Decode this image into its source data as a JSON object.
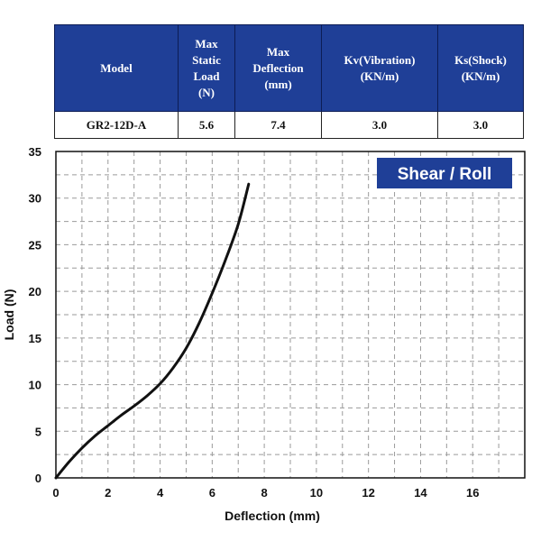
{
  "table": {
    "headers": [
      "Model",
      "Max\nStatic\nLoad\n(N)",
      "Max\nDeflection\n(mm)",
      "Kv(Vibration)\n(KN/m)",
      "Ks(Shock)\n(KN/m)"
    ],
    "row": [
      "GR2-12D-A",
      "5.6",
      "7.4",
      "3.0",
      "3.0"
    ]
  },
  "colors": {
    "header_bg": "#1f3f97",
    "badge_bg": "#1f3f97",
    "curve": "#111111",
    "grid": "#9a9a9a"
  },
  "chart_data": {
    "type": "line",
    "badge": "Shear / Roll",
    "xlabel": "Deflection (mm)",
    "ylabel": "Load (N)",
    "xlim": [
      0,
      18
    ],
    "ylim": [
      0,
      35
    ],
    "x_ticks": [
      "0",
      "2",
      "4",
      "6",
      "8",
      "10",
      "12",
      "14",
      "16"
    ],
    "y_ticks": [
      "0",
      "5",
      "10",
      "15",
      "20",
      "25",
      "30",
      "35"
    ],
    "grid": true,
    "series": [
      {
        "x": [
          0,
          0.5,
          1.0,
          1.5,
          2.0,
          2.5,
          3.0,
          3.5,
          4.0,
          4.5,
          5.0,
          5.5,
          6.0,
          6.5,
          7.0,
          7.4
        ],
        "y": [
          0,
          1.7,
          3.2,
          4.5,
          5.6,
          6.7,
          7.7,
          8.8,
          10.1,
          11.8,
          13.9,
          16.6,
          19.8,
          23.3,
          27.2,
          31.5
        ]
      }
    ]
  }
}
